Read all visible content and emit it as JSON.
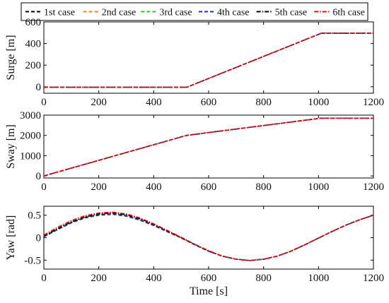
{
  "chart_data": {
    "type": "line",
    "legend": {
      "placement": "top",
      "entries": [
        {
          "name": "1st case",
          "color": "#000000",
          "dash": "dashed"
        },
        {
          "name": "2nd case",
          "color": "#ff7f27",
          "dash": "dashed"
        },
        {
          "name": "3rd case",
          "color": "#22cc22",
          "dash": "dashed"
        },
        {
          "name": "4th case",
          "color": "#1f2fbf",
          "dash": "dashed"
        },
        {
          "name": "5th case",
          "color": "#000000",
          "dash": "dashdot"
        },
        {
          "name": "6th case",
          "color": "#ff0000",
          "dash": "dashdot"
        }
      ]
    },
    "xlabel": "Time [s]",
    "subplots": [
      {
        "id": "surge",
        "ylabel": "Surge [m]",
        "xlim": [
          0,
          1200
        ],
        "ylim": [
          -60,
          600
        ],
        "xticks": [
          0,
          200,
          400,
          600,
          800,
          1000,
          1200
        ],
        "yticks": [
          0,
          200,
          400,
          600
        ],
        "series": [
          {
            "x": [
              0,
              520,
              1010,
              1200
            ],
            "y": [
              -5,
              -5,
              495,
              495
            ]
          },
          {
            "x": [
              0,
              520,
              1010,
              1200
            ],
            "y": [
              -5,
              -5,
              495,
              495
            ]
          },
          {
            "x": [
              0,
              520,
              1010,
              1200
            ],
            "y": [
              -5,
              -5,
              495,
              495
            ]
          },
          {
            "x": [
              0,
              520,
              1010,
              1200
            ],
            "y": [
              -5,
              -5,
              495,
              495
            ]
          },
          {
            "x": [
              0,
              520,
              1010,
              1200
            ],
            "y": [
              -5,
              -5,
              495,
              495
            ]
          },
          {
            "x": [
              0,
              520,
              1010,
              1200
            ],
            "y": [
              -5,
              -5,
              495,
              495
            ]
          }
        ]
      },
      {
        "id": "sway",
        "ylabel": "Sway [m]",
        "xlim": [
          0,
          1200
        ],
        "ylim": [
          -100,
          3000
        ],
        "xticks": [
          0,
          200,
          400,
          600,
          800,
          1000,
          1200
        ],
        "yticks": [
          0,
          1000,
          2000,
          3000
        ],
        "series": [
          {
            "x": [
              0,
              520,
              1010,
              1200
            ],
            "y": [
              0,
              2000,
              2850,
              2850
            ]
          },
          {
            "x": [
              0,
              520,
              1010,
              1200
            ],
            "y": [
              0,
              2000,
              2850,
              2850
            ]
          },
          {
            "x": [
              0,
              520,
              1010,
              1200
            ],
            "y": [
              0,
              2000,
              2850,
              2850
            ]
          },
          {
            "x": [
              0,
              520,
              1010,
              1200
            ],
            "y": [
              0,
              2000,
              2850,
              2850
            ]
          },
          {
            "x": [
              0,
              520,
              1010,
              1200
            ],
            "y": [
              0,
              2000,
              2850,
              2850
            ]
          },
          {
            "x": [
              0,
              520,
              1010,
              1200
            ],
            "y": [
              0,
              2000,
              2850,
              2850
            ]
          }
        ]
      },
      {
        "id": "yaw",
        "ylabel": "Yaw [rad]",
        "xlim": [
          0,
          1200
        ],
        "ylim": [
          -0.7,
          0.7
        ],
        "xticks": [
          0,
          200,
          400,
          600,
          800,
          1000,
          1200
        ],
        "yticks": [
          -0.5,
          0,
          0.5
        ],
        "series": [
          {
            "x": [
              0,
              50,
              100,
              150,
              200,
              250,
              300,
              350,
              400,
              450,
              500,
              550,
              600,
              650,
              700,
              750,
              800,
              850,
              900,
              950,
              1000,
              1050,
              1100,
              1150,
              1200
            ],
            "y": [
              0.02,
              0.18,
              0.33,
              0.44,
              0.5,
              0.52,
              0.48,
              0.39,
              0.27,
              0.13,
              -0.01,
              -0.16,
              -0.3,
              -0.41,
              -0.48,
              -0.51,
              -0.48,
              -0.41,
              -0.3,
              -0.16,
              -0.01,
              0.14,
              0.28,
              0.4,
              0.5
            ]
          },
          {
            "x": [
              0,
              50,
              100,
              150,
              200,
              250,
              300,
              350,
              400,
              450,
              500,
              550,
              600,
              650,
              700,
              750,
              800,
              850,
              900,
              950,
              1000,
              1050,
              1100,
              1150,
              1200
            ],
            "y": [
              0.03,
              0.19,
              0.34,
              0.45,
              0.51,
              0.53,
              0.49,
              0.4,
              0.28,
              0.14,
              -0.01,
              -0.16,
              -0.3,
              -0.41,
              -0.48,
              -0.51,
              -0.48,
              -0.41,
              -0.3,
              -0.16,
              -0.01,
              0.14,
              0.28,
              0.4,
              0.5
            ]
          },
          {
            "x": [
              0,
              50,
              100,
              150,
              200,
              250,
              300,
              350,
              400,
              450,
              500,
              550,
              600,
              650,
              700,
              750,
              800,
              850,
              900,
              950,
              1000,
              1050,
              1100,
              1150,
              1200
            ],
            "y": [
              0.04,
              0.2,
              0.35,
              0.46,
              0.52,
              0.54,
              0.5,
              0.41,
              0.29,
              0.15,
              0.0,
              -0.15,
              -0.3,
              -0.41,
              -0.48,
              -0.51,
              -0.48,
              -0.41,
              -0.3,
              -0.16,
              -0.01,
              0.14,
              0.28,
              0.4,
              0.5
            ]
          },
          {
            "x": [
              0,
              50,
              100,
              150,
              200,
              250,
              300,
              350,
              400,
              450,
              500,
              550,
              600,
              650,
              700,
              750,
              800,
              850,
              900,
              950,
              1000,
              1050,
              1100,
              1150,
              1200
            ],
            "y": [
              0.02,
              0.18,
              0.33,
              0.45,
              0.51,
              0.53,
              0.49,
              0.4,
              0.28,
              0.14,
              0.0,
              -0.16,
              -0.3,
              -0.41,
              -0.48,
              -0.51,
              -0.48,
              -0.41,
              -0.3,
              -0.16,
              -0.01,
              0.14,
              0.28,
              0.4,
              0.5
            ]
          },
          {
            "x": [
              0,
              50,
              100,
              150,
              200,
              250,
              300,
              350,
              400,
              450,
              500,
              550,
              600,
              650,
              700,
              750,
              800,
              850,
              900,
              950,
              1000,
              1050,
              1100,
              1150,
              1200
            ],
            "y": [
              0.03,
              0.2,
              0.35,
              0.46,
              0.53,
              0.55,
              0.51,
              0.42,
              0.3,
              0.15,
              0.0,
              -0.15,
              -0.3,
              -0.41,
              -0.48,
              -0.51,
              -0.48,
              -0.41,
              -0.3,
              -0.16,
              -0.01,
              0.14,
              0.28,
              0.4,
              0.5
            ]
          },
          {
            "x": [
              0,
              50,
              100,
              150,
              200,
              250,
              300,
              350,
              400,
              450,
              500,
              550,
              600,
              650,
              700,
              750,
              800,
              850,
              900,
              950,
              1000,
              1050,
              1100,
              1150,
              1200
            ],
            "y": [
              0.06,
              0.23,
              0.38,
              0.49,
              0.55,
              0.57,
              0.53,
              0.44,
              0.31,
              0.16,
              0.01,
              -0.15,
              -0.29,
              -0.41,
              -0.48,
              -0.51,
              -0.48,
              -0.41,
              -0.3,
              -0.16,
              -0.01,
              0.14,
              0.28,
              0.4,
              0.5
            ]
          }
        ]
      }
    ]
  }
}
